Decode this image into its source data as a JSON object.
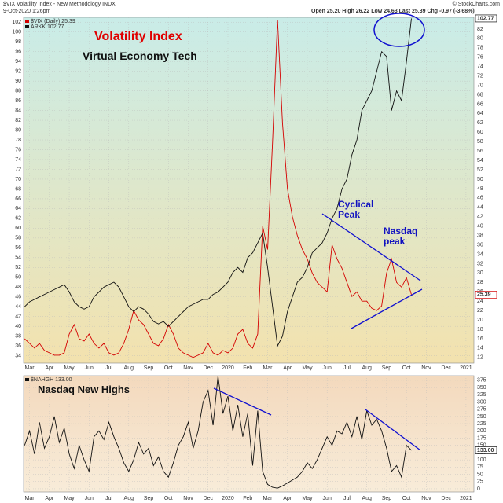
{
  "header": {
    "symbol": "$VIX Volatility Index - New Methodology INDX",
    "date": "9-Oct-2020 1:26pm",
    "quote": "Open 25.20 High 26.22 Low 24.63 Last 25.39 Chg -0.97 (-3.68%)",
    "credit": "© StockCharts.com"
  },
  "chart_data": [
    {
      "type": "line",
      "annotations": [
        "Volatility Index",
        "Virtual Economy Tech",
        "Cyclical Peak",
        "Nasdaq peak"
      ],
      "xlim": [
        -0.3,
        22.4
      ],
      "xticks": [
        {
          "value": 0,
          "label": "Mar"
        },
        {
          "value": 1,
          "label": "Apr"
        },
        {
          "value": 2,
          "label": "May"
        },
        {
          "value": 3,
          "label": "Jun"
        },
        {
          "value": 4,
          "label": "Jul"
        },
        {
          "value": 5,
          "label": "Aug"
        },
        {
          "value": 6,
          "label": "Sep"
        },
        {
          "value": 7,
          "label": "Oct"
        },
        {
          "value": 8,
          "label": "Nov"
        },
        {
          "value": 9,
          "label": "Dec"
        },
        {
          "value": 10,
          "label": "2020"
        },
        {
          "value": 11,
          "label": "Feb"
        },
        {
          "value": 12,
          "label": "Mar"
        },
        {
          "value": 13,
          "label": "Apr"
        },
        {
          "value": 14,
          "label": "May"
        },
        {
          "value": 15,
          "label": "Jun"
        },
        {
          "value": 16,
          "label": "Jul"
        },
        {
          "value": 17,
          "label": "Aug"
        },
        {
          "value": 18,
          "label": "Sep"
        },
        {
          "value": 19,
          "label": "Oct"
        },
        {
          "value": 20,
          "label": "Nov"
        },
        {
          "value": 21,
          "label": "Dec"
        },
        {
          "value": 22,
          "label": "2021"
        }
      ],
      "ylim": [
        32.5,
        103
      ],
      "yticks": [
        34,
        36,
        38,
        40,
        42,
        44,
        46,
        48,
        50,
        52,
        54,
        56,
        58,
        60,
        62,
        64,
        66,
        68,
        70,
        72,
        74,
        76,
        78,
        80,
        82,
        84,
        86,
        88,
        90,
        92,
        94,
        96,
        98,
        100,
        102
      ],
      "y2lim": [
        10.8,
        84.5
      ],
      "y2ticks": [
        12,
        14,
        16,
        18,
        20,
        22,
        24,
        26,
        28,
        30,
        32,
        34,
        36,
        38,
        40,
        42,
        44,
        46,
        48,
        50,
        52,
        54,
        56,
        58,
        60,
        62,
        64,
        66,
        68,
        70,
        72,
        74,
        76,
        78,
        80,
        82
      ],
      "grid": true,
      "x": [
        -0.25,
        0,
        0.25,
        0.5,
        0.75,
        1,
        1.25,
        1.5,
        1.75,
        2,
        2.25,
        2.5,
        2.75,
        3,
        3.25,
        3.5,
        3.75,
        4,
        4.25,
        4.5,
        4.75,
        5,
        5.25,
        5.5,
        5.75,
        6,
        6.25,
        6.5,
        6.75,
        7,
        7.25,
        7.5,
        7.75,
        8,
        8.25,
        8.5,
        8.75,
        9,
        9.25,
        9.5,
        9.75,
        10,
        10.25,
        10.5,
        10.75,
        11,
        11.25,
        11.5,
        11.75,
        12,
        12.25,
        12.5,
        12.75,
        13,
        13.25,
        13.5,
        13.75,
        14,
        14.25,
        14.5,
        14.75,
        15,
        15.25,
        15.5,
        15.75,
        16,
        16.25,
        16.5,
        16.75,
        17,
        17.25,
        17.5,
        17.75,
        18,
        18.25,
        18.5,
        18.75,
        19,
        19.25
      ],
      "series": [
        {
          "name": "$VIX (Daily) 25.39",
          "color": "#d40000",
          "axis": "y2",
          "values": [
            16,
            15,
            14,
            15,
            13.5,
            13,
            12.5,
            12.5,
            13,
            17,
            19,
            16,
            15.5,
            17,
            15,
            14,
            15,
            13,
            12.5,
            13,
            15,
            18,
            22,
            20,
            19,
            17,
            15,
            14.5,
            16,
            19,
            17,
            14,
            13,
            12.5,
            12,
            12.5,
            13,
            15,
            13,
            12.5,
            13.5,
            13,
            14,
            17,
            18,
            15,
            14,
            17,
            40,
            35,
            58,
            84,
            62,
            48,
            42,
            38,
            35,
            33,
            30,
            28,
            27,
            26,
            36,
            33,
            31,
            28,
            25,
            26,
            24,
            24,
            22.5,
            22,
            23,
            30,
            33,
            28,
            27,
            29,
            25.39
          ]
        },
        {
          "name": "ARKK 102.77",
          "color": "#111111",
          "axis": "y",
          "values": [
            44,
            45,
            45.5,
            46,
            46.5,
            47,
            47.5,
            48,
            48.5,
            47,
            45,
            44,
            43.5,
            44,
            46,
            47,
            48,
            48.5,
            49,
            48,
            46,
            44,
            43,
            44,
            43.5,
            42.5,
            41,
            40.5,
            41,
            40,
            41,
            42,
            43,
            44,
            44.5,
            45,
            45.5,
            45.5,
            46.5,
            47,
            48,
            49,
            51,
            52,
            51,
            54,
            55,
            57,
            59,
            52,
            44,
            36,
            38,
            43,
            46,
            49,
            50,
            52,
            55,
            56,
            57,
            59,
            62,
            64,
            68,
            70,
            75,
            78,
            84,
            86,
            88,
            92,
            96,
            95,
            84,
            88,
            86,
            94,
            102.77
          ]
        }
      ]
    },
    {
      "type": "line",
      "annotations": [
        "Nasdaq New Highs"
      ],
      "xlim": [
        -0.3,
        22.4
      ],
      "xticks": [
        {
          "value": 0,
          "label": "Mar"
        },
        {
          "value": 1,
          "label": "Apr"
        },
        {
          "value": 2,
          "label": "May"
        },
        {
          "value": 3,
          "label": "Jun"
        },
        {
          "value": 4,
          "label": "Jul"
        },
        {
          "value": 5,
          "label": "Aug"
        },
        {
          "value": 6,
          "label": "Sep"
        },
        {
          "value": 7,
          "label": "Oct"
        },
        {
          "value": 8,
          "label": "Nov"
        },
        {
          "value": 9,
          "label": "Dec"
        },
        {
          "value": 10,
          "label": "2020"
        },
        {
          "value": 11,
          "label": "Feb"
        },
        {
          "value": 12,
          "label": "Mar"
        },
        {
          "value": 13,
          "label": "Apr"
        },
        {
          "value": 14,
          "label": "May"
        },
        {
          "value": 15,
          "label": "Jun"
        },
        {
          "value": 16,
          "label": "Jul"
        },
        {
          "value": 17,
          "label": "Aug"
        },
        {
          "value": 18,
          "label": "Sep"
        },
        {
          "value": 19,
          "label": "Oct"
        },
        {
          "value": 20,
          "label": "Nov"
        },
        {
          "value": 21,
          "label": "Dec"
        },
        {
          "value": 22,
          "label": "2021"
        }
      ],
      "y2lim": [
        -11,
        391
      ],
      "y2ticks": [
        0,
        25,
        50,
        75,
        100,
        125,
        150,
        175,
        200,
        225,
        250,
        275,
        300,
        325,
        350,
        375
      ],
      "grid": true,
      "last_value_label": "133.00",
      "x": [
        -0.25,
        0,
        0.25,
        0.5,
        0.75,
        1,
        1.25,
        1.5,
        1.75,
        2,
        2.25,
        2.5,
        2.75,
        3,
        3.25,
        3.5,
        3.75,
        4,
        4.25,
        4.5,
        4.75,
        5,
        5.25,
        5.5,
        5.75,
        6,
        6.25,
        6.5,
        6.75,
        7,
        7.25,
        7.5,
        7.75,
        8,
        8.25,
        8.5,
        8.75,
        9,
        9.25,
        9.5,
        9.75,
        10,
        10.25,
        10.5,
        10.75,
        11,
        11.25,
        11.5,
        11.75,
        12,
        12.25,
        12.5,
        12.75,
        13,
        13.25,
        13.5,
        13.75,
        14,
        14.25,
        14.5,
        14.75,
        15,
        15.25,
        15.5,
        15.75,
        16,
        16.25,
        16.5,
        16.75,
        17,
        17.25,
        17.5,
        17.75,
        18,
        18.25,
        18.5,
        18.75,
        19,
        19.25
      ],
      "series": [
        {
          "name": "$NAHGH 133.00",
          "color": "#111111",
          "axis": "y2",
          "values": [
            150,
            200,
            120,
            230,
            140,
            180,
            250,
            160,
            210,
            120,
            70,
            150,
            100,
            60,
            180,
            200,
            170,
            230,
            180,
            140,
            90,
            60,
            100,
            160,
            120,
            140,
            80,
            110,
            60,
            40,
            90,
            150,
            180,
            230,
            140,
            200,
            300,
            340,
            220,
            390,
            260,
            320,
            200,
            290,
            180,
            260,
            80,
            270,
            60,
            15,
            5,
            2,
            10,
            20,
            30,
            40,
            60,
            90,
            70,
            100,
            140,
            180,
            150,
            200,
            190,
            230,
            180,
            250,
            170,
            270,
            220,
            240,
            200,
            140,
            60,
            80,
            40,
            150,
            133
          ]
        }
      ]
    }
  ]
}
